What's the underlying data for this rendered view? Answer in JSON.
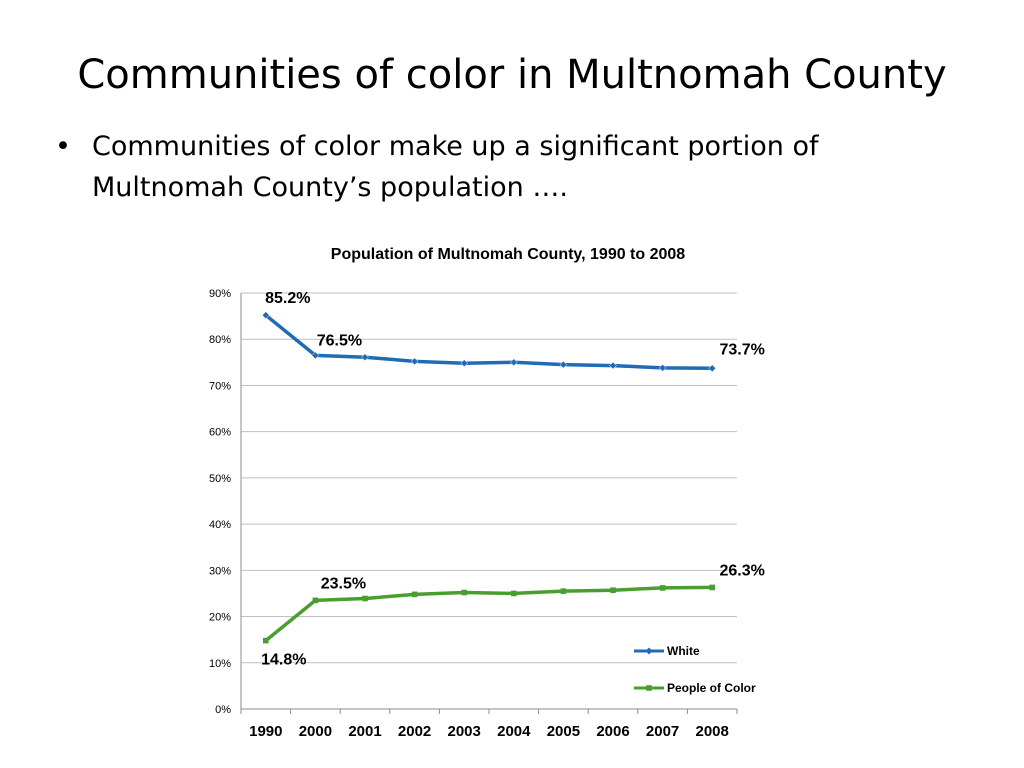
{
  "slide": {
    "title": "Communities of color in Multnomah County",
    "bullet": "Communities of color make up a significant portion of Multnomah County’s population ….",
    "bullet_marker": "•"
  },
  "chart_data": {
    "type": "line",
    "title": "Population of Multnomah County, 1990 to 2008",
    "xlabel": "",
    "ylabel": "",
    "categories": [
      "1990",
      "2000",
      "2001",
      "2002",
      "2003",
      "2004",
      "2005",
      "2006",
      "2007",
      "2008"
    ],
    "ylim": [
      0,
      90
    ],
    "y_ticks": [
      0,
      10,
      20,
      30,
      40,
      50,
      60,
      70,
      80,
      90
    ],
    "y_tick_labels": [
      "0%",
      "10%",
      "20%",
      "30%",
      "40%",
      "50%",
      "60%",
      "70%",
      "80%",
      "90%"
    ],
    "grid": true,
    "legend_position": "right",
    "series": [
      {
        "name": "White",
        "color": "#1f6bb5",
        "marker": "diamond",
        "values": [
          85.2,
          76.5,
          76.1,
          75.2,
          74.8,
          75.0,
          74.5,
          74.3,
          73.8,
          73.7
        ]
      },
      {
        "name": "People of Color",
        "color": "#4a9e2f",
        "marker": "square",
        "values": [
          14.8,
          23.5,
          23.9,
          24.8,
          25.2,
          25.0,
          25.5,
          25.7,
          26.2,
          26.3
        ]
      }
    ],
    "annotations": [
      {
        "series": 0,
        "index": 0,
        "text": "85.2%"
      },
      {
        "series": 0,
        "index": 1,
        "text": "76.5%"
      },
      {
        "series": 0,
        "index": 9,
        "text": "73.7%"
      },
      {
        "series": 1,
        "index": 0,
        "text": "14.8%"
      },
      {
        "series": 1,
        "index": 1,
        "text": "23.5%"
      },
      {
        "series": 1,
        "index": 9,
        "text": "26.3%"
      }
    ]
  }
}
